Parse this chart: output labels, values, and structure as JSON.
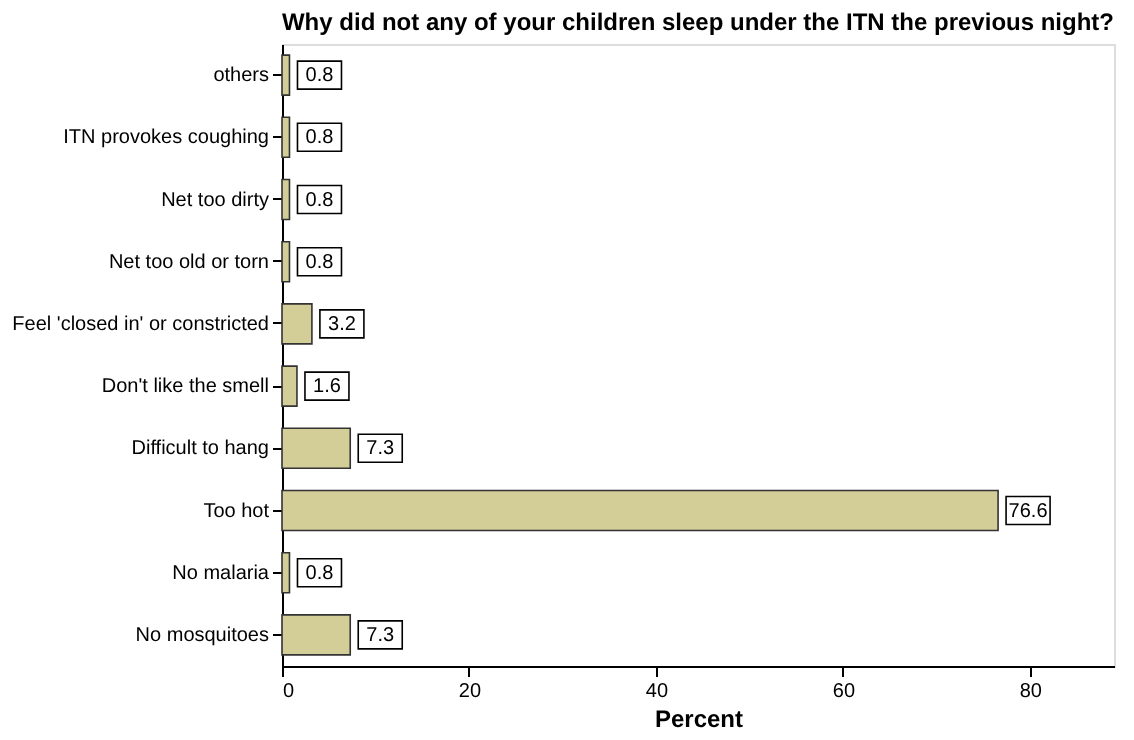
{
  "chart_data": {
    "type": "bar",
    "orientation": "horizontal",
    "title": "Why did not any of your children sleep under the ITN the previous night?",
    "xlabel": "Percent",
    "categories": [
      "others",
      "ITN provokes coughing",
      "Net too dirty",
      "Net too old or torn",
      "Feel 'closed in' or constricted",
      "Don't like the smell",
      "Difficult to hang",
      "Too hot",
      "No malaria",
      "No mosquitoes"
    ],
    "values": [
      0.8,
      0.8,
      0.8,
      0.8,
      3.2,
      1.6,
      7.3,
      76.6,
      0.8,
      7.3
    ],
    "color": "#d3cd98",
    "xlim": [
      0,
      89
    ],
    "xticks": [
      0,
      20,
      40,
      60,
      80
    ],
    "data_labels": true,
    "grid": false
  }
}
